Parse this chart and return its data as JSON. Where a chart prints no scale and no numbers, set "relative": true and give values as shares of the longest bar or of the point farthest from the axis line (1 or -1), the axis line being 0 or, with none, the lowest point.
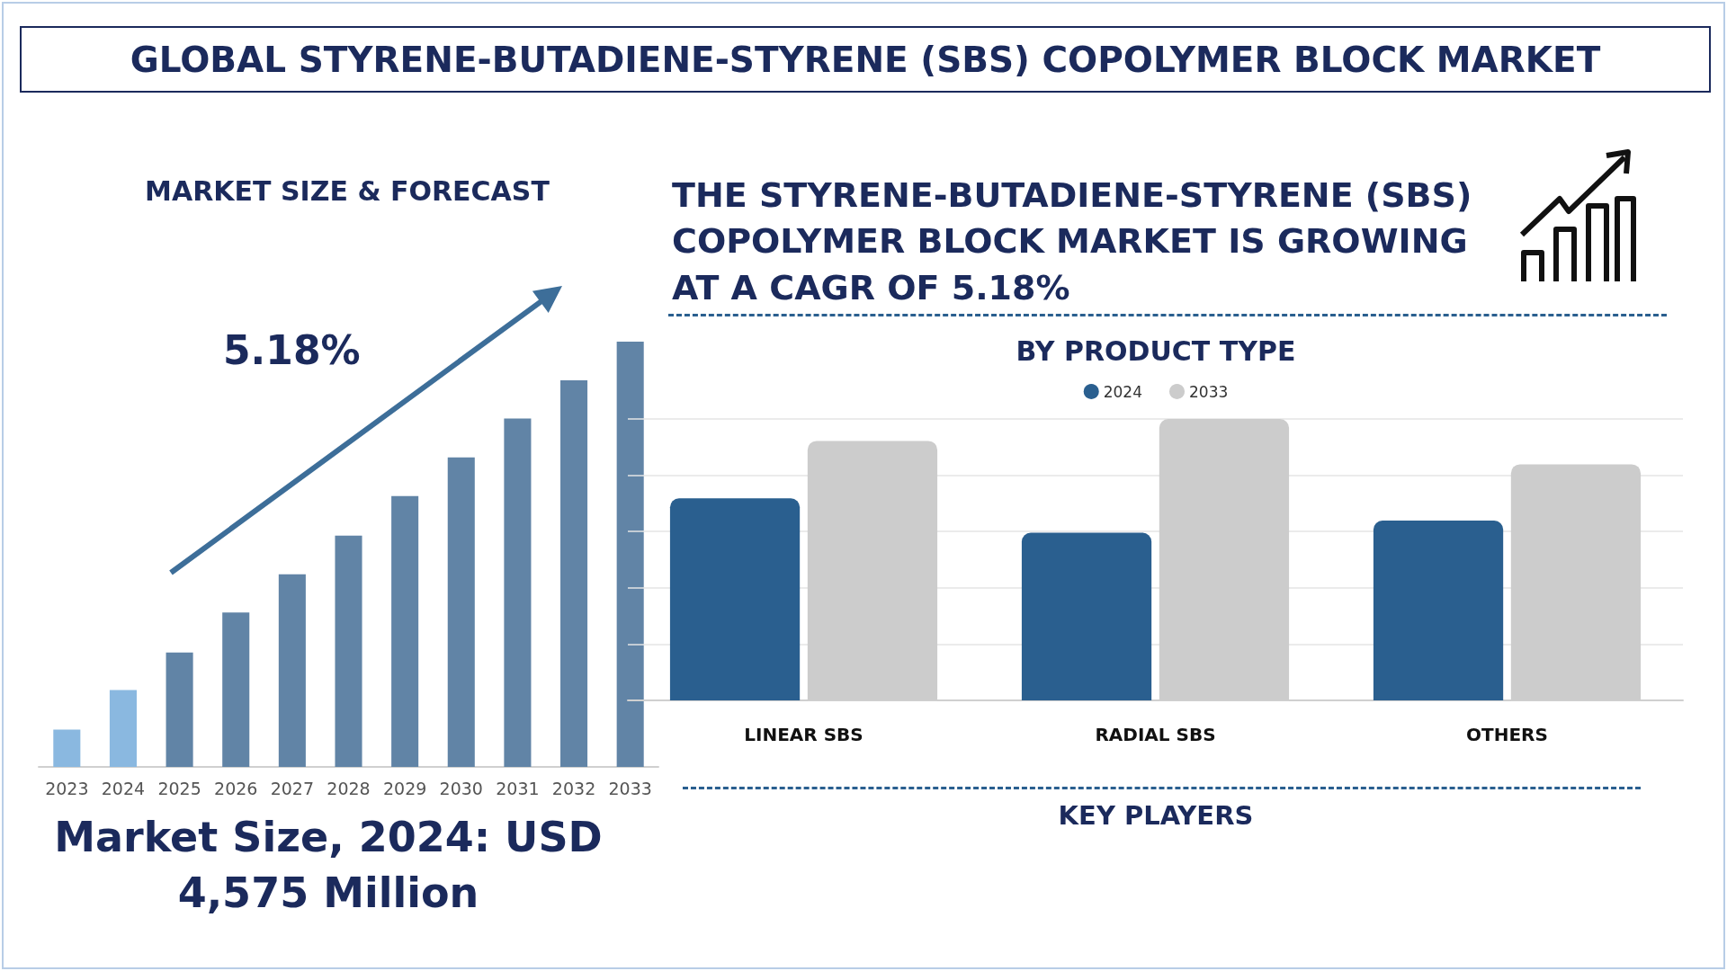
{
  "chart_data": [
    {
      "type": "other",
      "title": "GLOBAL STYRENE-BUTADIENE-STYRENE (SBS) COPOLYMER BLOCK MARKET",
      "annotations": [
        "THE STYRENE-BUTADIENE-STYRENE (SBS) COPOLYMER BLOCK MARKET IS GROWING AT A CAGR OF 5.18%",
        "KEY PLAYERS"
      ]
    },
    {
      "type": "bar",
      "title": "MARKET SIZE & FORECAST",
      "categories": [
        "2023",
        "2024",
        "2025",
        "2026",
        "2027",
        "2028",
        "2029",
        "2030",
        "2031",
        "2032",
        "2033"
      ],
      "values": [
        0.088,
        0.181,
        0.269,
        0.363,
        0.453,
        0.544,
        0.637,
        0.728,
        0.819,
        0.909,
        1
      ],
      "colors": [
        "#8ab8e0",
        "#8ab8e0",
        "#6184a6",
        "#6184a6",
        "#6184a6",
        "#6184a6",
        "#6184a6",
        "#6184a6",
        "#6184a6",
        "#6184a6",
        "#6184a6"
      ],
      "relative": true,
      "annotations": [
        "5.18%",
        "Market Size, 2024: USD 4,575 Million"
      ]
    },
    {
      "type": "bar",
      "title": "BY PRODUCT TYPE",
      "categories": [
        "LINEAR SBS",
        "RADIAL SBS",
        "OTHERS"
      ],
      "series": [
        {
          "name": "2024",
          "color": "#2a5f8f",
          "values": [
            0.718,
            0.596,
            0.639
          ]
        },
        {
          "name": "2033",
          "color": "#cccccc",
          "values": [
            0.922,
            1,
            0.839
          ]
        }
      ],
      "relative": true,
      "grid": "y",
      "legend": "top"
    }
  ]
}
